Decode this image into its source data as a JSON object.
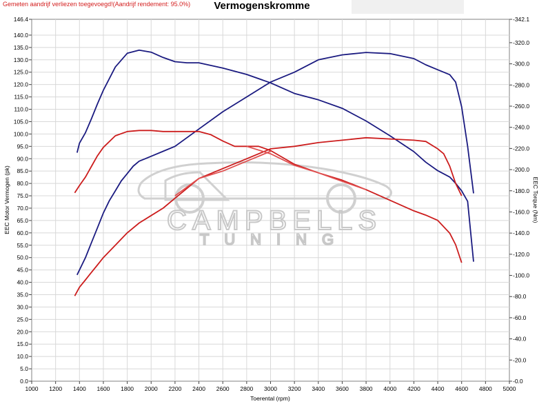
{
  "header": {
    "notice": "Gemeten aandrijf verliezen toegevoegd!(Aandrijf rendement: 95.0%)",
    "title": "Vermogenskromme"
  },
  "watermark": {
    "line1": "CAMPBELLS",
    "line2": "TUNING"
  },
  "colors": {
    "power": "#1a1a80",
    "torque": "#cc1c1c",
    "stock": "#e05050",
    "grid": "#d8d8d8"
  },
  "chart_data": {
    "type": "line",
    "xlabel": "Toerental (rpm)",
    "ylabel_left": "EEC Motor Vermogen (pk)",
    "ylabel_right": "EEC Torque (Nm)",
    "xlim": [
      1000,
      5000
    ],
    "ylim_left": [
      0,
      146.4
    ],
    "ylim_right": [
      0,
      342.1
    ],
    "grid": true,
    "x_ticks": [
      1000,
      1200,
      1400,
      1600,
      1800,
      2000,
      2200,
      2400,
      2600,
      2800,
      3000,
      3200,
      3400,
      3600,
      3800,
      4000,
      4200,
      4400,
      4600,
      4800,
      5000
    ],
    "left_ticks": [
      "0.0",
      "5.0",
      "10.0",
      "15.0",
      "20.0",
      "25.0",
      "30.0",
      "35.0",
      "40.0",
      "45.0",
      "50.0",
      "55.0",
      "60.0",
      "65.0",
      "70.0",
      "75.0",
      "80.0",
      "85.0",
      "90.0",
      "95.0",
      "100.0",
      "105.0",
      "110.0",
      "115.0",
      "120.0",
      "125.0",
      "130.0",
      "135.0",
      "140.0",
      "146.4"
    ],
    "left_tick_values": [
      0,
      5,
      10,
      15,
      20,
      25,
      30,
      35,
      40,
      45,
      50,
      55,
      60,
      65,
      70,
      75,
      80,
      85,
      90,
      95,
      100,
      105,
      110,
      115,
      120,
      125,
      130,
      135,
      140,
      146.4
    ],
    "right_ticks": [
      "0.0",
      "20.0",
      "40.0",
      "60.0",
      "80.0",
      "100.0",
      "120.0",
      "140.0",
      "160.0",
      "180.0",
      "200.0",
      "220.0",
      "240.0",
      "260.0",
      "280.0",
      "300.0",
      "320.0",
      "342.1"
    ],
    "right_tick_values": [
      0,
      20,
      40,
      60,
      80,
      100,
      120,
      140,
      160,
      180,
      200,
      220,
      240,
      260,
      280,
      300,
      320,
      342.1
    ],
    "series": [
      {
        "axis": "left",
        "color": "#1a1a80",
        "x": [
          1380,
          1400,
          1450,
          1500,
          1550,
          1600,
          1650,
          1700,
          1750,
          1800,
          1850,
          1900,
          1950,
          2000,
          2100,
          2200,
          2400,
          2600,
          2800,
          3000,
          3200,
          3400,
          3600,
          3800,
          4000,
          4200,
          4300,
          4400,
          4500,
          4550,
          4600,
          4650,
          4700
        ],
        "y": [
          43,
          45,
          50,
          56,
          62,
          68,
          73,
          77,
          81,
          84,
          87,
          89,
          90,
          91,
          93,
          95,
          102,
          109,
          115,
          121,
          125,
          130,
          132,
          133,
          132.5,
          130.5,
          128,
          126,
          124,
          121,
          111,
          95,
          76
        ]
      },
      {
        "axis": "right",
        "color": "#1a1a80",
        "x": [
          1380,
          1400,
          1450,
          1500,
          1550,
          1600,
          1700,
          1800,
          1900,
          2000,
          2100,
          2200,
          2300,
          2400,
          2600,
          2800,
          3000,
          3200,
          3400,
          3600,
          3800,
          4000,
          4200,
          4300,
          4400,
          4500,
          4550,
          4600,
          4650,
          4700
        ],
        "y": [
          216,
          225,
          235,
          248,
          262,
          275,
          297,
          310,
          313,
          311,
          306,
          302,
          301,
          301,
          296,
          290,
          282,
          272,
          266,
          258,
          246,
          232,
          217,
          207,
          199,
          193,
          187,
          180,
          170,
          113
        ]
      },
      {
        "axis": "left",
        "color": "#cc1c1c",
        "x": [
          1360,
          1400,
          1450,
          1500,
          1550,
          1600,
          1700,
          1800,
          1900,
          2000,
          2100,
          2200,
          2300,
          2400,
          2600,
          2800,
          3000,
          3200,
          3400,
          3600,
          3800,
          4000,
          4200,
          4300,
          4400,
          4450,
          4500,
          4550,
          4600
        ],
        "y": [
          34.5,
          38,
          41,
          44,
          47,
          50,
          55,
          60,
          64,
          67,
          70,
          74,
          78,
          82,
          86,
          90,
          94,
          95,
          96.5,
          97.5,
          98.5,
          98,
          97.5,
          97,
          94,
          92,
          87,
          80,
          75
        ]
      },
      {
        "axis": "right",
        "color": "#cc1c1c",
        "x": [
          1360,
          1400,
          1450,
          1500,
          1550,
          1600,
          1700,
          1800,
          1900,
          2000,
          2100,
          2200,
          2300,
          2400,
          2500,
          2600,
          2700,
          2800,
          2900,
          3000,
          3200,
          3400,
          3600,
          3800,
          4000,
          4200,
          4300,
          4400,
          4500,
          4550,
          4600
        ],
        "y": [
          178,
          185,
          193,
          203,
          213,
          221,
          232,
          236,
          237,
          237,
          236,
          236,
          236,
          236,
          233,
          227,
          222,
          222,
          222,
          218,
          205,
          197,
          190,
          181,
          171,
          161,
          157,
          152,
          140,
          129,
          112
        ]
      },
      {
        "axis": "left",
        "color": "#e05050",
        "x": [
          2200,
          2400,
          2600,
          2800,
          3000
        ],
        "y": [
          75,
          82,
          85,
          89,
          93
        ]
      },
      {
        "axis": "right",
        "color": "#e05050",
        "x": [
          2800,
          3000,
          3200,
          3400,
          3600,
          3800
        ],
        "y": [
          222,
          215,
          204,
          197,
          189,
          181
        ]
      }
    ]
  }
}
